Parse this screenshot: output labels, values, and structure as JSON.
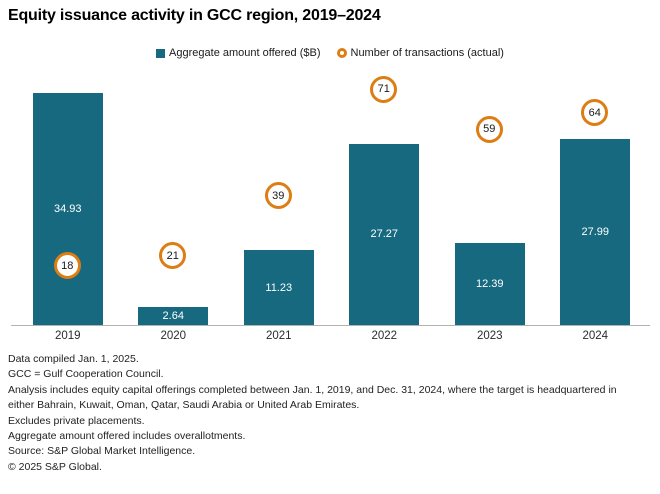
{
  "title": "Equity issuance activity in GCC region, 2019–2024",
  "legend": {
    "items": [
      {
        "label": "Aggregate amount offered ($B)",
        "marker": "square",
        "color": "#16697F"
      },
      {
        "label": "Number of transactions (actual)",
        "marker": "ring",
        "color": "#DD7D14"
      }
    ]
  },
  "chart_data": {
    "type": "bar",
    "title": "Equity issuance activity in GCC region, 2019–2024",
    "categories": [
      "2019",
      "2020",
      "2021",
      "2022",
      "2023",
      "2024"
    ],
    "series": [
      {
        "name": "Aggregate amount offered ($B)",
        "type": "bar",
        "color": "#16697F",
        "values": [
          34.93,
          2.64,
          11.23,
          27.27,
          12.39,
          27.99
        ],
        "axis": "left",
        "ylim": [
          0,
          40
        ]
      },
      {
        "name": "Number of transactions (actual)",
        "type": "circled-point",
        "color": "#DD7D14",
        "values": [
          18,
          21,
          39,
          71,
          59,
          64
        ],
        "axis": "right",
        "ylim": [
          0,
          80
        ]
      }
    ],
    "xlabel": "",
    "ylabel": "",
    "grid": false,
    "y_axis_visible": false,
    "legend_position": "top-center",
    "axis_line_color": "#B2B2B2",
    "bar_label_color": "#FFFFFF"
  },
  "footnotes": [
    "Data compiled Jan. 1, 2025.",
    "GCC = Gulf Cooperation Council.",
    "Analysis includes equity capital offerings completed between Jan. 1, 2019, and Dec. 31, 2024, where the target is headquartered in either Bahrain, Kuwait, Oman, Qatar, Saudi Arabia or United Arab Emirates.",
    "Excludes private placements.",
    "Aggregate amount offered includes overallotments.",
    "Source: S&P Global Market Intelligence.",
    "© 2025 S&P Global."
  ]
}
